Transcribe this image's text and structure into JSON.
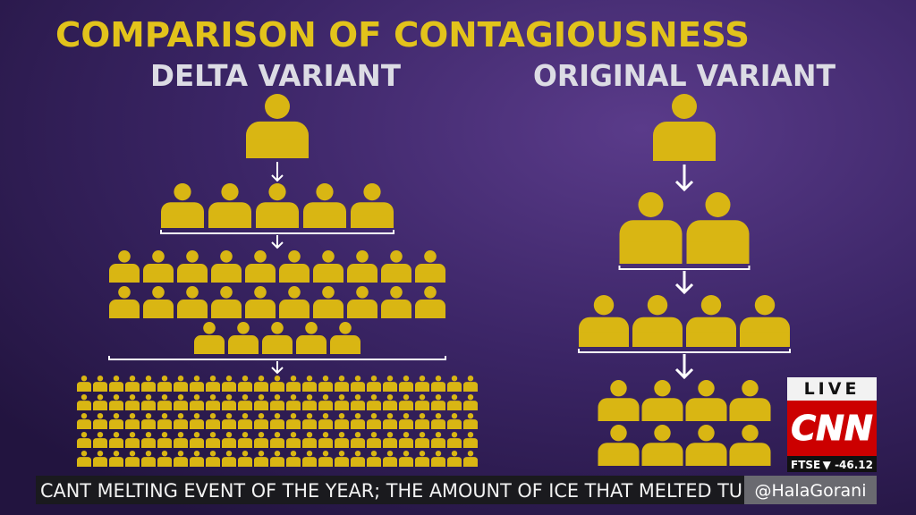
{
  "title": "COMPARISON OF CONTAGIOUSNESS",
  "panels": [
    {
      "heading": "DELTA VARIANT",
      "generations": [
        1,
        5,
        25,
        125
      ]
    },
    {
      "heading": "ORIGINAL VARIANT",
      "generations": [
        1,
        2,
        4,
        8
      ]
    }
  ],
  "live": "LIVE",
  "network": "CNN",
  "market": {
    "index": "FTSE",
    "change": "▼ -46.12"
  },
  "ticker": "CANT MELTING EVENT OF THE YEAR; THE AMOUNT OF ICE THAT MELTED TU",
  "handle": "@HalaGorani"
}
